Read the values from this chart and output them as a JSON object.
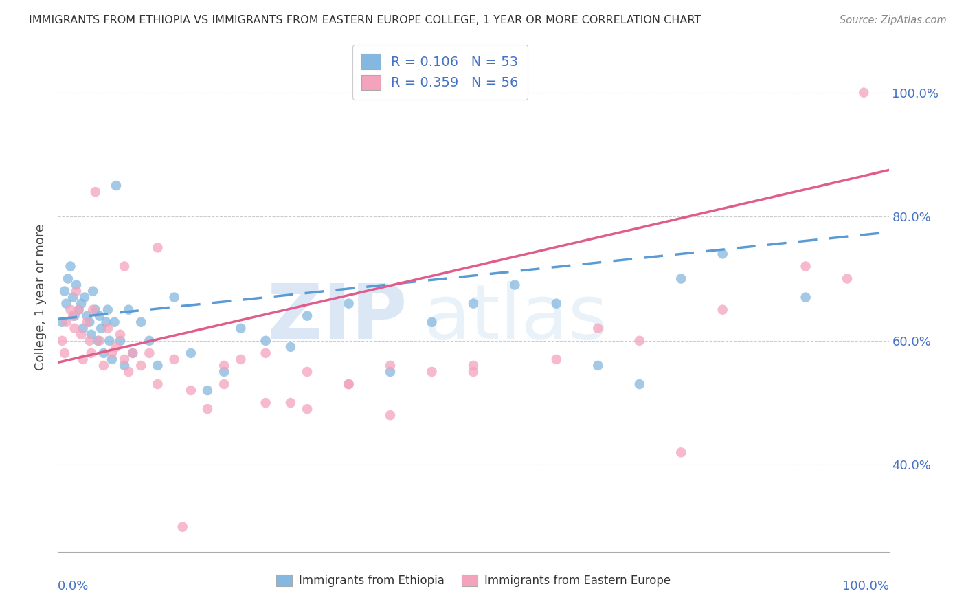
{
  "title": "IMMIGRANTS FROM ETHIOPIA VS IMMIGRANTS FROM EASTERN EUROPE COLLEGE, 1 YEAR OR MORE CORRELATION CHART",
  "source": "Source: ZipAtlas.com",
  "ylabel": "College, 1 year or more",
  "ytick_vals": [
    0.4,
    0.6,
    0.8,
    1.0
  ],
  "ytick_labels": [
    "40.0%",
    "60.0%",
    "80.0%",
    "100.0%"
  ],
  "legend1_label": "R = 0.106   N = 53",
  "legend2_label": "R = 0.359   N = 56",
  "legend_title_blue": "Immigrants from Ethiopia",
  "legend_title_pink": "Immigrants from Eastern Europe",
  "blue_color": "#85b8e0",
  "pink_color": "#f4a3bc",
  "trendline_blue": "#5b9bd5",
  "trendline_pink": "#e05c8a",
  "text_color_axis": "#4472C4",
  "background_color": "#ffffff",
  "xlim": [
    0.0,
    1.0
  ],
  "ylim": [
    0.26,
    1.08
  ],
  "blue_x": [
    0.005,
    0.008,
    0.01,
    0.012,
    0.015,
    0.018,
    0.02,
    0.022,
    0.025,
    0.028,
    0.03,
    0.032,
    0.035,
    0.038,
    0.04,
    0.042,
    0.045,
    0.048,
    0.05,
    0.052,
    0.055,
    0.058,
    0.06,
    0.062,
    0.065,
    0.068,
    0.07,
    0.075,
    0.08,
    0.085,
    0.09,
    0.1,
    0.11,
    0.12,
    0.14,
    0.16,
    0.18,
    0.2,
    0.22,
    0.25,
    0.28,
    0.3,
    0.35,
    0.4,
    0.45,
    0.5,
    0.55,
    0.6,
    0.65,
    0.7,
    0.75,
    0.8,
    0.9
  ],
  "blue_y": [
    0.63,
    0.68,
    0.66,
    0.7,
    0.72,
    0.67,
    0.64,
    0.69,
    0.65,
    0.66,
    0.62,
    0.67,
    0.64,
    0.63,
    0.61,
    0.68,
    0.65,
    0.6,
    0.64,
    0.62,
    0.58,
    0.63,
    0.65,
    0.6,
    0.57,
    0.63,
    0.85,
    0.6,
    0.56,
    0.65,
    0.58,
    0.63,
    0.6,
    0.56,
    0.67,
    0.58,
    0.52,
    0.55,
    0.62,
    0.6,
    0.59,
    0.64,
    0.66,
    0.55,
    0.63,
    0.66,
    0.69,
    0.66,
    0.56,
    0.53,
    0.7,
    0.74,
    0.67
  ],
  "pink_x": [
    0.005,
    0.008,
    0.01,
    0.015,
    0.018,
    0.02,
    0.022,
    0.025,
    0.028,
    0.03,
    0.035,
    0.038,
    0.04,
    0.042,
    0.045,
    0.05,
    0.055,
    0.06,
    0.065,
    0.07,
    0.075,
    0.08,
    0.085,
    0.09,
    0.1,
    0.11,
    0.12,
    0.14,
    0.16,
    0.18,
    0.2,
    0.22,
    0.25,
    0.28,
    0.3,
    0.35,
    0.4,
    0.45,
    0.5,
    0.6,
    0.7,
    0.8,
    0.9,
    0.95,
    0.97,
    0.08,
    0.12,
    0.15,
    0.2,
    0.25,
    0.3,
    0.35,
    0.4,
    0.5,
    0.65,
    0.75
  ],
  "pink_y": [
    0.6,
    0.58,
    0.63,
    0.65,
    0.64,
    0.62,
    0.68,
    0.65,
    0.61,
    0.57,
    0.63,
    0.6,
    0.58,
    0.65,
    0.84,
    0.6,
    0.56,
    0.62,
    0.58,
    0.59,
    0.61,
    0.57,
    0.55,
    0.58,
    0.56,
    0.58,
    0.53,
    0.57,
    0.52,
    0.49,
    0.56,
    0.57,
    0.58,
    0.5,
    0.55,
    0.53,
    0.56,
    0.55,
    0.55,
    0.57,
    0.6,
    0.65,
    0.72,
    0.7,
    1.0,
    0.72,
    0.75,
    0.3,
    0.53,
    0.5,
    0.49,
    0.53,
    0.48,
    0.56,
    0.62,
    0.42
  ],
  "blue_trendline_x0": 0.0,
  "blue_trendline_y0": 0.635,
  "blue_trendline_x1": 1.0,
  "blue_trendline_y1": 0.775,
  "pink_trendline_x0": 0.0,
  "pink_trendline_y0": 0.565,
  "pink_trendline_x1": 1.0,
  "pink_trendline_y1": 0.875
}
